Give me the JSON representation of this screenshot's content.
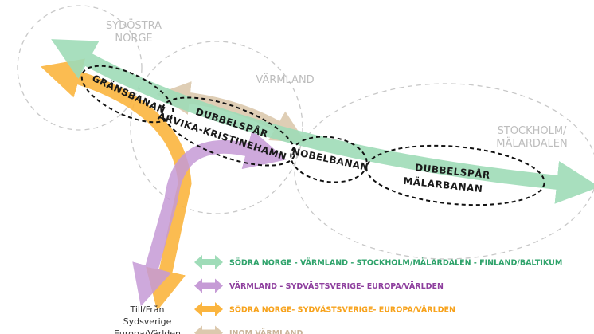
{
  "regions": [
    {
      "lines": [
        "SYDÖSTRA",
        "NORGE"
      ]
    },
    {
      "lines": [
        "VÄRMLAND"
      ]
    },
    {
      "lines": [
        "STOCKHOLM/",
        "MÄLARDALEN"
      ]
    }
  ],
  "corridors": [
    {
      "lines": [
        "GRÄNSBANAN"
      ]
    },
    {
      "lines": [
        "DUBBELSPÅR",
        "ARVIKA-KRISTINEHAMN"
      ]
    },
    {
      "lines": [
        "NOBELBANAN"
      ]
    },
    {
      "lines": [
        "DUBBELSPÅR",
        "MÄLARBANAN"
      ]
    }
  ],
  "legend": [
    {
      "label": "SÖDRA NORGE - VÄRMLAND - STOCKHOLM/MÄLARDALEN - FINLAND/BALTIKUM",
      "color": "#2fa36b",
      "arrow": "#9fdcb8"
    },
    {
      "label": "VÄRMLAND - SYDVÄSTSVERIGE- EUROPA/VÄRLDEN",
      "color": "#8e3f9e",
      "arrow": "#c69bd6"
    },
    {
      "label": "SÖDRA NORGE- SYDVÄSTSVERIGE- EUROPA/VÄRLDEN",
      "color": "#f7a21b",
      "arrow": "#fbb53f"
    },
    {
      "label": "INOM VÄRMLAND",
      "color": "#c9b59a",
      "arrow": "#dcc9ae"
    }
  ],
  "destination": {
    "lines": [
      "Till/Från",
      "Sydsverige",
      "Europa/Världen"
    ]
  }
}
